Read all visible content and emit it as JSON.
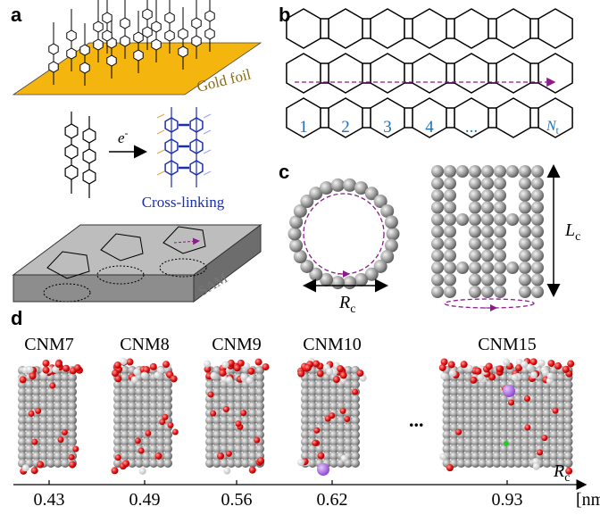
{
  "panel_a": {
    "label": "a",
    "substrate": "Gold foil",
    "reagent": {
      "base": "e",
      "sup": "-"
    },
    "process": "Cross-linking",
    "layer": "SAM"
  },
  "panel_b": {
    "label": "b",
    "cell_indices": [
      1,
      2,
      3,
      4,
      "..."
    ],
    "last_index": {
      "base": "N",
      "sub": "t"
    }
  },
  "panel_c": {
    "label": "c",
    "radius": {
      "base": "R",
      "sub": "c"
    },
    "length": {
      "base": "L",
      "sub": "c"
    }
  },
  "panel_d": {
    "label": "d",
    "membranes": [
      {
        "name": "CNM7",
        "radius": 0.43
      },
      {
        "name": "CNM8",
        "radius": 0.49
      },
      {
        "name": "CNM9",
        "radius": 0.56
      },
      {
        "name": "CNM10",
        "radius": 0.62
      },
      {
        "name": "CNM15",
        "radius": 0.93
      }
    ],
    "ellipsis": "...",
    "axis_label": {
      "base": "R",
      "sub": "c"
    },
    "unit": "[nm]"
  }
}
